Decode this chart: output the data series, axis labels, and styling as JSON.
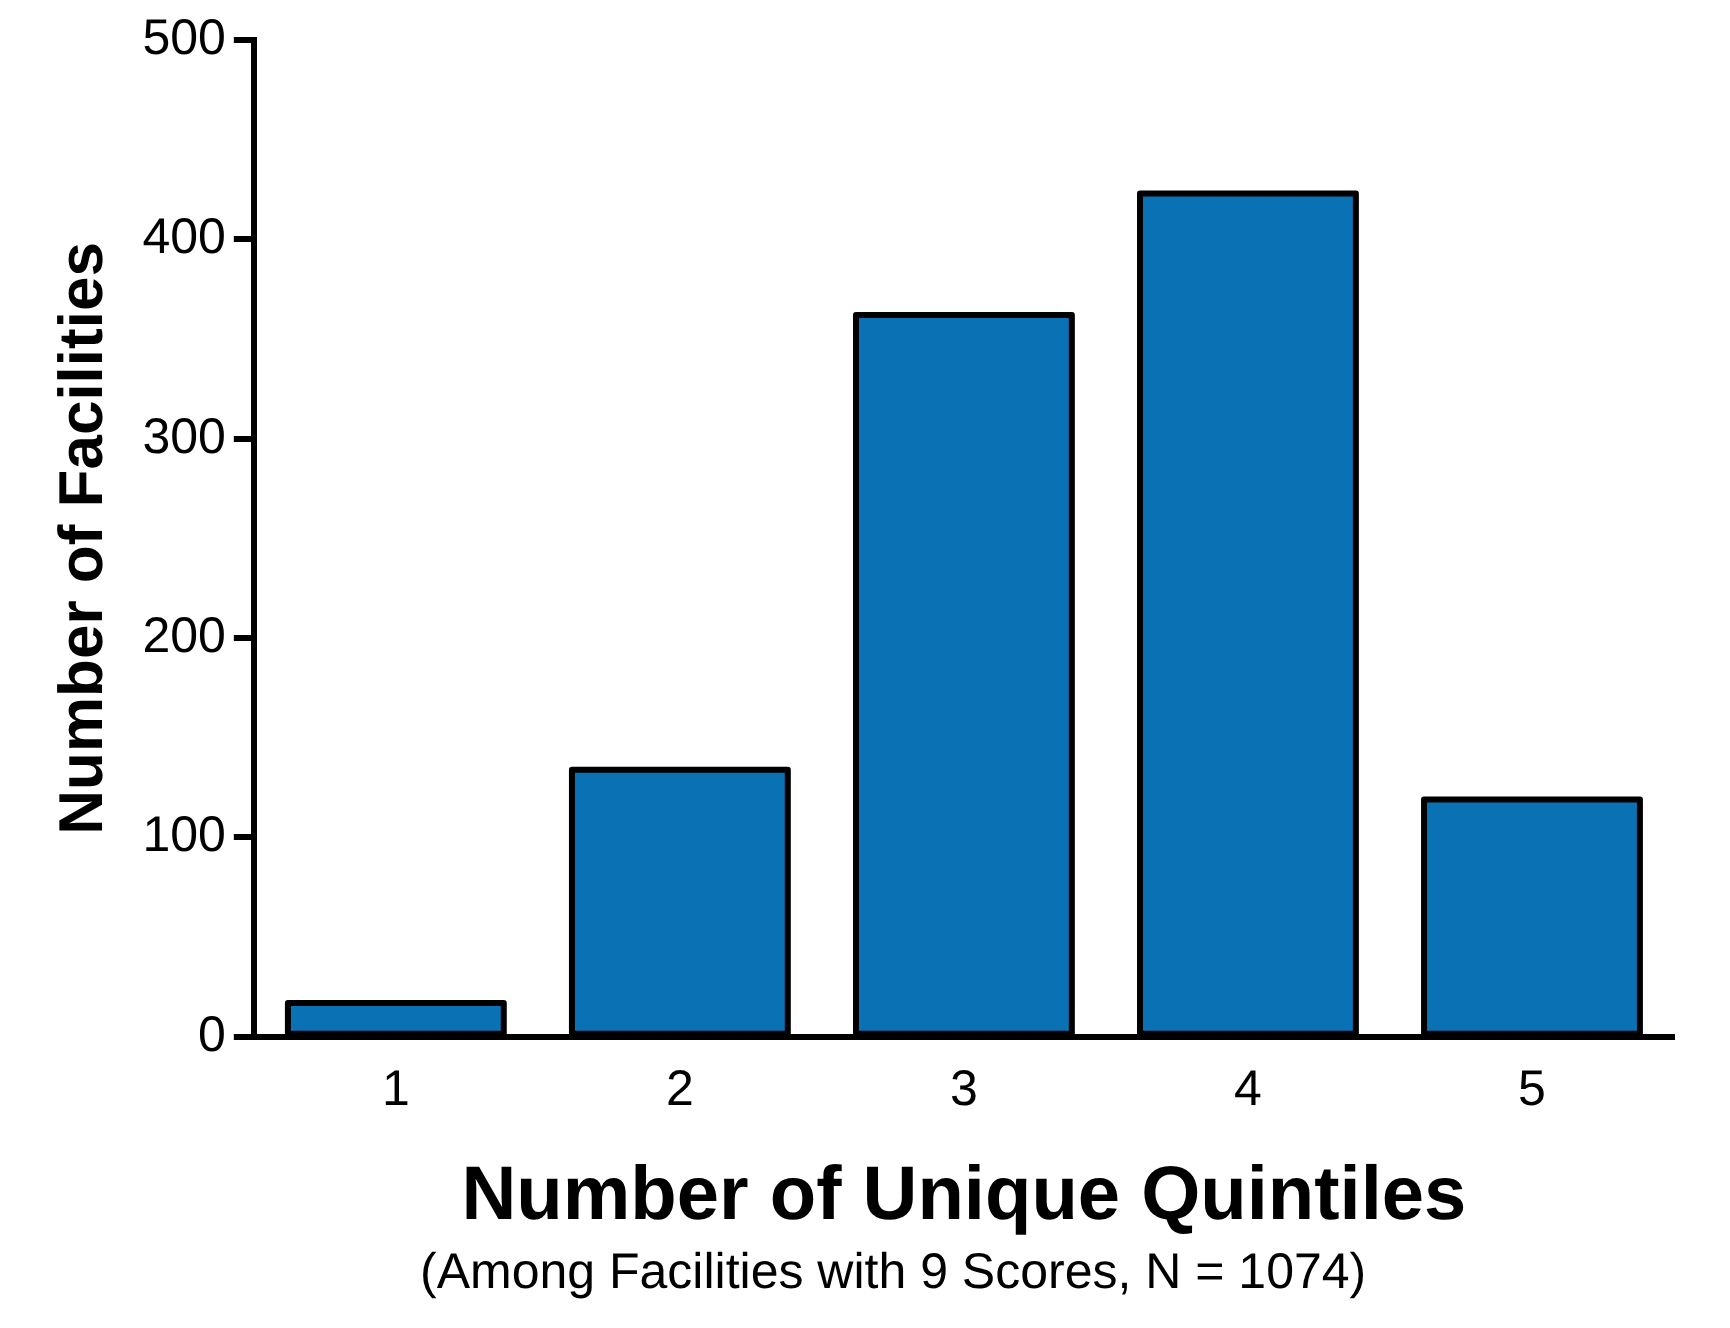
{
  "chart_data": {
    "type": "bar",
    "xlabel": "Number of Unique Quintiles",
    "ylabel": "Number of Facilities",
    "annotations": [
      "(Among Facilities with 9 Scores, N = 1074)"
    ],
    "categories": [
      "1",
      "2",
      "3",
      "4",
      "5"
    ],
    "values": [
      17,
      134,
      362,
      423,
      119
    ],
    "color": "#0a72b4",
    "ylim": [
      0,
      500
    ],
    "yticks": [
      0,
      100,
      200,
      300,
      400,
      500
    ],
    "grid": false,
    "legend": false
  }
}
